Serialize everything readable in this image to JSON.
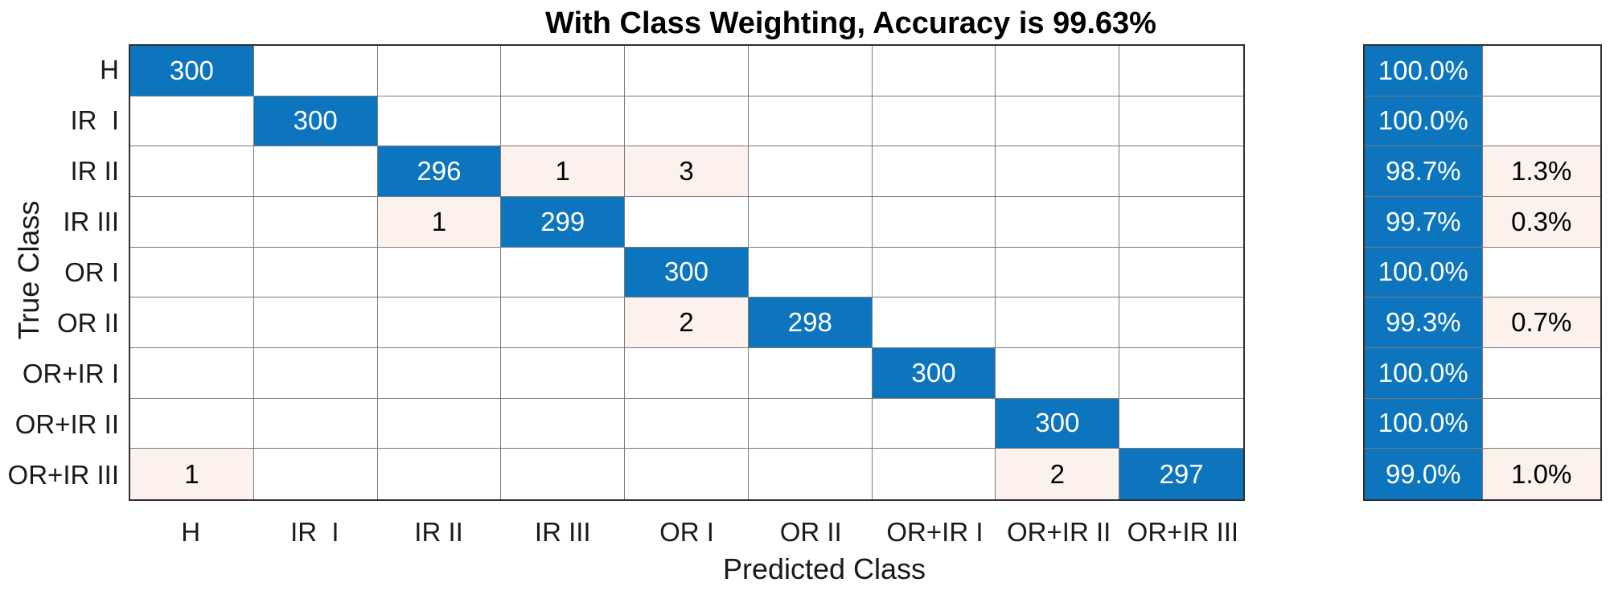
{
  "chart_data": {
    "type": "heatmap",
    "subtype": "confusion-matrix",
    "title": "With Class Weighting, Accuracy is 99.63%",
    "xlabel": "Predicted Class",
    "ylabel": "True Class",
    "classes": [
      "H",
      "IR  I",
      "IR II",
      "IR III",
      "OR I",
      "OR II",
      "OR+IR I",
      "OR+IR II",
      "OR+IR III"
    ],
    "matrix": [
      [
        300,
        0,
        0,
        0,
        0,
        0,
        0,
        0,
        0
      ],
      [
        0,
        300,
        0,
        0,
        0,
        0,
        0,
        0,
        0
      ],
      [
        0,
        0,
        296,
        1,
        3,
        0,
        0,
        0,
        0
      ],
      [
        0,
        0,
        1,
        299,
        0,
        0,
        0,
        0,
        0
      ],
      [
        0,
        0,
        0,
        0,
        300,
        0,
        0,
        0,
        0
      ],
      [
        0,
        0,
        0,
        0,
        2,
        298,
        0,
        0,
        0
      ],
      [
        0,
        0,
        0,
        0,
        0,
        0,
        300,
        0,
        0
      ],
      [
        0,
        0,
        0,
        0,
        0,
        0,
        0,
        300,
        0
      ],
      [
        1,
        0,
        0,
        0,
        0,
        0,
        0,
        2,
        297
      ]
    ],
    "row_summary": {
      "recall": [
        "100.0%",
        "100.0%",
        "98.7%",
        "99.7%",
        "100.0%",
        "99.3%",
        "100.0%",
        "100.0%",
        "99.0%"
      ],
      "false_negative_rate": [
        "",
        "",
        "1.3%",
        "0.3%",
        "",
        "0.7%",
        "",
        "",
        "1.0%"
      ]
    },
    "colors": {
      "diagonal_blue": "#0d75be",
      "error_pink": "#fcf1ec",
      "empty_cell": "#ffffff",
      "grid_line": "#7a7a7a",
      "outer_border": "#2e2e2e",
      "text_on_blue": "#ffffff",
      "text": "#000000"
    },
    "layout": {
      "legend": false,
      "grid": true,
      "row_summary_position": "right"
    }
  }
}
